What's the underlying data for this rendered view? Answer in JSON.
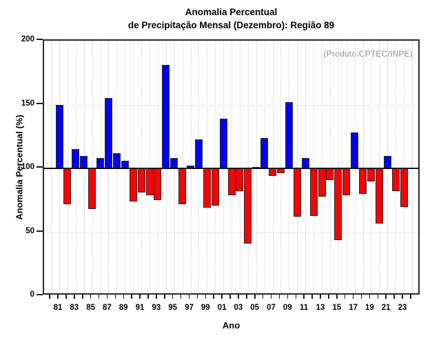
{
  "title": {
    "line1": "Anomalia Percentual",
    "line2": "de Precipitação Mensal (Dezembro): Região 89"
  },
  "annotation": "(Produto:CPTEC/INPE)",
  "chart_data": {
    "type": "bar",
    "title": "Anomalia Percentual de Precipitação Mensal (Dezembro): Região 89",
    "xlabel": "Ano",
    "ylabel": "Anomalia Percentual (%)",
    "ylim": [
      0,
      200
    ],
    "yticks": [
      0,
      50,
      100,
      150,
      200
    ],
    "baseline": 100,
    "grid": "dotted",
    "legend_position": "none",
    "colors": {
      "above_baseline": "#0404ee",
      "below_baseline": "#f50505",
      "bar_border": "#2b2b2b",
      "gridline": "#cfcfcf",
      "annotation_text": "#8f8f8f"
    },
    "x_axis_tick_year_start": 1980,
    "x_axis_tick_year_end": 2024,
    "xtick_labels": [
      "81",
      "83",
      "85",
      "87",
      "89",
      "91",
      "93",
      "95",
      "97",
      "99",
      "01",
      "03",
      "05",
      "07",
      "09",
      "11",
      "13",
      "15",
      "17",
      "19",
      "21",
      "23"
    ],
    "years": [
      1981,
      1982,
      1983,
      1984,
      1985,
      1986,
      1987,
      1988,
      1989,
      1990,
      1991,
      1992,
      1993,
      1994,
      1995,
      1996,
      1997,
      1998,
      1999,
      2000,
      2001,
      2002,
      2003,
      2004,
      2005,
      2006,
      2007,
      2008,
      2009,
      2010,
      2011,
      2012,
      2013,
      2014,
      2015,
      2016,
      2017,
      2018,
      2019,
      2020,
      2021,
      2022,
      2023
    ],
    "values": [
      150,
      72,
      115,
      110,
      68,
      108,
      155,
      112,
      106,
      74,
      81,
      79,
      75,
      181,
      108,
      72,
      102,
      123,
      69,
      71,
      139,
      79,
      82,
      41,
      101,
      124,
      94,
      96,
      152,
      62,
      108,
      63,
      78,
      91,
      44,
      79,
      128,
      80,
      90,
      57,
      110,
      82,
      70
    ]
  }
}
